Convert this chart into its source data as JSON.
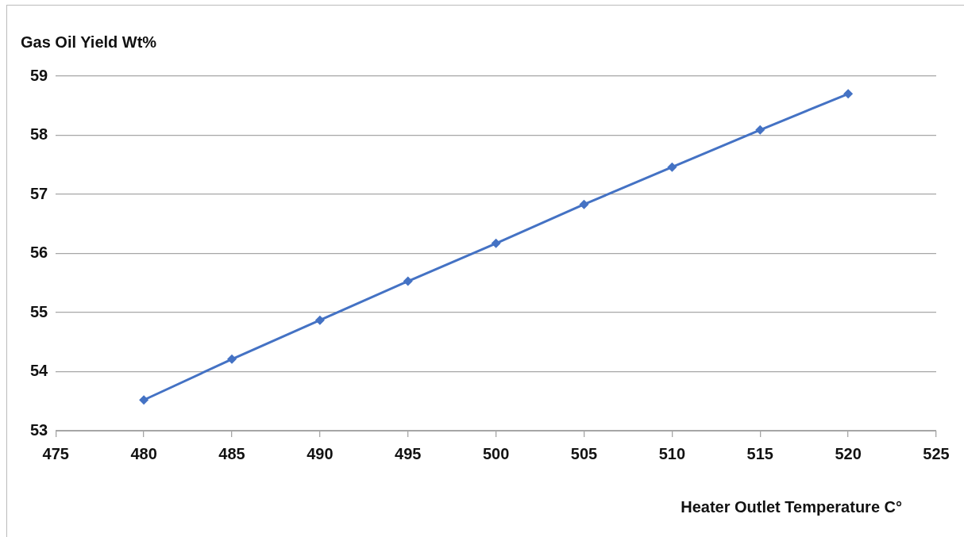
{
  "chart_data": {
    "type": "line",
    "xlabel": "Heater Outlet Temperature C°",
    "ylabel": "Gas Oil Yield Wt%",
    "x": [
      480,
      485,
      490,
      495,
      500,
      505,
      510,
      515,
      520
    ],
    "series": [
      {
        "color": "#4472c4",
        "values": [
          53.52,
          54.21,
          54.87,
          55.53,
          56.17,
          56.83,
          57.46,
          58.09,
          58.7
        ]
      }
    ],
    "xlim": [
      475,
      525
    ],
    "xticks": [
      475,
      480,
      485,
      490,
      495,
      500,
      505,
      510,
      515,
      520,
      525
    ],
    "ylim": [
      53,
      59
    ],
    "yticks": [
      53,
      54,
      55,
      56,
      57,
      58,
      59
    ],
    "grid": "y",
    "legend": false,
    "marker": "diamond",
    "line_style": "solid"
  }
}
